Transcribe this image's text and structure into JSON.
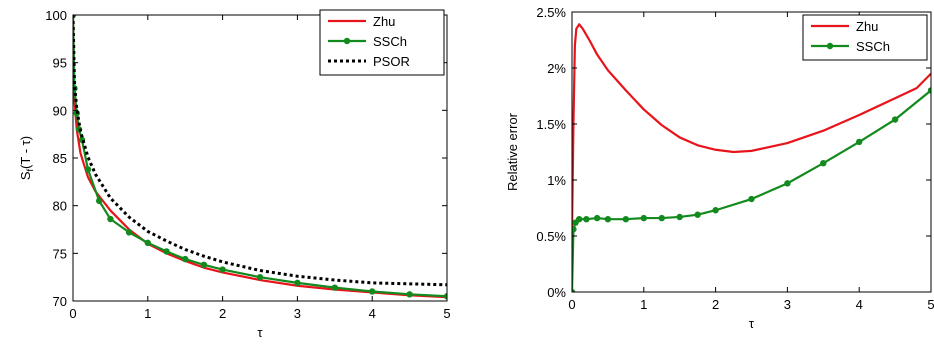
{
  "chart_data": [
    {
      "type": "line",
      "xlabel": "τ",
      "ylabel_main": "S",
      "ylabel_sub": "f",
      "ylabel_rest": "(T - τ)",
      "xlim": [
        0,
        5
      ],
      "ylim": [
        70,
        100
      ],
      "xticks": [
        0,
        1,
        2,
        3,
        4,
        5
      ],
      "yticks": [
        70,
        75,
        80,
        85,
        90,
        95,
        100
      ],
      "ytick_labels": [
        "70",
        "75",
        "80",
        "85",
        "90",
        "95",
        "100"
      ],
      "grid": false,
      "legend_position": "top-right",
      "series": [
        {
          "name": "Zhu",
          "color": "#e8141b",
          "style": "solid",
          "x": [
            0,
            0.02,
            0.05,
            0.1,
            0.2,
            0.3,
            0.5,
            0.75,
            1.0,
            1.25,
            1.5,
            1.75,
            2.0,
            2.5,
            3.0,
            3.5,
            4.0,
            4.5,
            5.0
          ],
          "y": [
            99.5,
            91.0,
            88.0,
            85.5,
            83.0,
            81.5,
            79.5,
            77.5,
            76.0,
            75.0,
            74.2,
            73.5,
            73.0,
            72.2,
            71.6,
            71.2,
            70.9,
            70.6,
            70.4
          ]
        },
        {
          "name": "SSCh",
          "color": "#138a1e",
          "style": "solid-marker",
          "x": [
            0,
            0.02,
            0.05,
            0.08,
            0.12,
            0.2,
            0.35,
            0.5,
            0.75,
            1.0,
            1.25,
            1.5,
            1.75,
            2.0,
            2.5,
            3.0,
            3.5,
            4.0,
            4.5,
            5.0
          ],
          "y": [
            100,
            92.3,
            89.7,
            88.0,
            86.9,
            83.8,
            80.5,
            78.6,
            77.2,
            76.1,
            75.2,
            74.4,
            73.8,
            73.3,
            72.5,
            71.9,
            71.4,
            71.0,
            70.7,
            70.5
          ]
        },
        {
          "name": "PSOR",
          "color": "#000000",
          "style": "dotted",
          "x": [
            0,
            0.02,
            0.05,
            0.1,
            0.2,
            0.3,
            0.5,
            0.75,
            1.0,
            1.25,
            1.5,
            1.75,
            2.0,
            2.5,
            3.0,
            3.5,
            4.0,
            4.5,
            5.0
          ],
          "y": [
            100,
            92.8,
            90.2,
            87.8,
            85.1,
            83.3,
            80.8,
            78.8,
            77.3,
            76.3,
            75.4,
            74.7,
            74.1,
            73.2,
            72.6,
            72.2,
            71.9,
            71.8,
            71.7
          ]
        }
      ]
    },
    {
      "type": "line",
      "xlabel": "τ",
      "ylabel": "Relative error",
      "xlim": [
        0,
        5
      ],
      "ylim": [
        0,
        2.5
      ],
      "xticks": [
        0,
        1,
        2,
        3,
        4,
        5
      ],
      "yticks": [
        0,
        0.5,
        1,
        1.5,
        2,
        2.5
      ],
      "ytick_labels": [
        "0%",
        "0.5%",
        "1%",
        "1.5%",
        "2%",
        "2.5%"
      ],
      "grid": false,
      "legend_position": "top-right",
      "series": [
        {
          "name": "Zhu",
          "color": "#e8141b",
          "style": "solid",
          "x": [
            0.0,
            0.02,
            0.04,
            0.06,
            0.1,
            0.15,
            0.25,
            0.35,
            0.5,
            0.75,
            1.0,
            1.25,
            1.5,
            1.75,
            2.0,
            2.25,
            2.5,
            3.0,
            3.5,
            4.0,
            4.5,
            4.8,
            5.0
          ],
          "y": [
            0.55,
            1.5,
            2.2,
            2.35,
            2.39,
            2.35,
            2.24,
            2.12,
            1.98,
            1.8,
            1.63,
            1.49,
            1.38,
            1.31,
            1.27,
            1.25,
            1.26,
            1.33,
            1.44,
            1.58,
            1.73,
            1.82,
            1.95
          ]
        },
        {
          "name": "SSCh",
          "color": "#138a1e",
          "style": "solid-marker",
          "x": [
            0,
            0.02,
            0.05,
            0.1,
            0.2,
            0.35,
            0.5,
            0.75,
            1.0,
            1.25,
            1.5,
            1.75,
            2.0,
            2.5,
            3.0,
            3.5,
            4.0,
            4.5,
            5.0
          ],
          "y": [
            0.0,
            0.56,
            0.62,
            0.65,
            0.65,
            0.66,
            0.65,
            0.65,
            0.66,
            0.66,
            0.67,
            0.69,
            0.73,
            0.83,
            0.97,
            1.15,
            1.34,
            1.54,
            1.8
          ]
        }
      ]
    }
  ]
}
